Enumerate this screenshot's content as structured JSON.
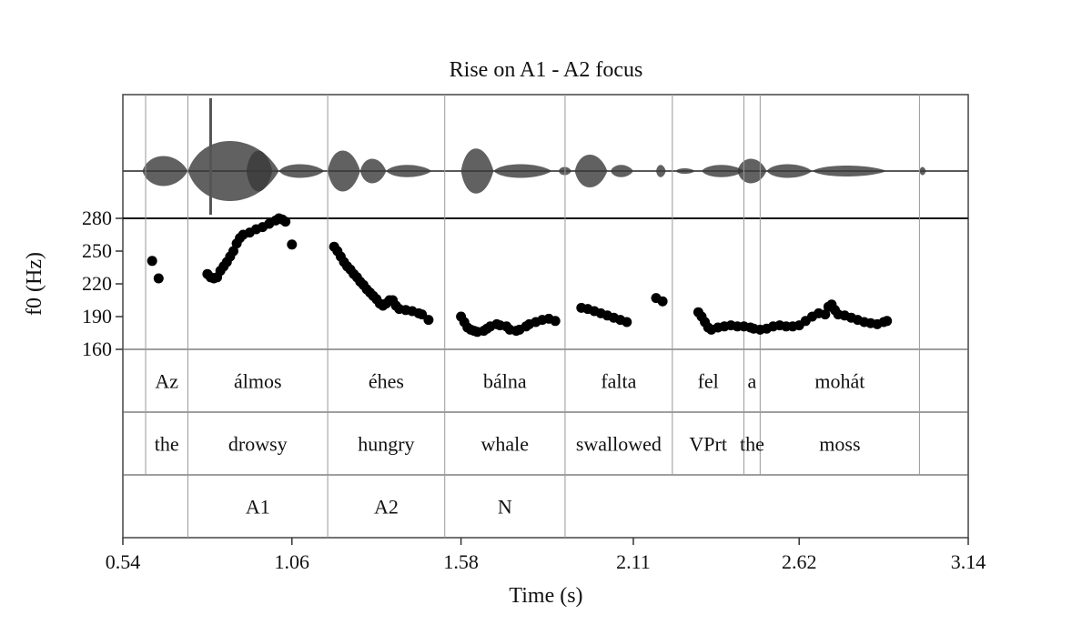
{
  "chart_data": {
    "type": "scatter",
    "title": "Rise on A1 - A2 focus",
    "xlabel": "Time (s)",
    "ylabel": "f0 (Hz)",
    "xlim": [
      0.54,
      3.14
    ],
    "ylim": [
      160,
      280
    ],
    "x_ticks": [
      "0.54",
      "1.06",
      "1.58",
      "2.11",
      "2.62",
      "3.14"
    ],
    "y_ticks": [
      "280",
      "250",
      "220",
      "190",
      "160"
    ],
    "grid": false,
    "waveform_panel": true,
    "segment_boundaries": [
      0.61,
      0.74,
      1.17,
      1.53,
      1.9,
      2.23,
      2.45,
      2.5,
      2.99
    ],
    "tiers": [
      {
        "name": "words",
        "intervals": [
          {
            "label": "Az",
            "start": 0.61,
            "end": 0.74
          },
          {
            "label": "álmos",
            "start": 0.74,
            "end": 1.17
          },
          {
            "label": "éhes",
            "start": 1.17,
            "end": 1.53
          },
          {
            "label": "bálna",
            "start": 1.53,
            "end": 1.9
          },
          {
            "label": "falta",
            "start": 1.9,
            "end": 2.23
          },
          {
            "label": "fel",
            "start": 2.23,
            "end": 2.45
          },
          {
            "label": "a",
            "start": 2.45,
            "end": 2.5
          },
          {
            "label": "mohát",
            "start": 2.5,
            "end": 2.99
          }
        ]
      },
      {
        "name": "gloss",
        "intervals": [
          {
            "label": "the",
            "start": 0.61,
            "end": 0.74
          },
          {
            "label": "drowsy",
            "start": 0.74,
            "end": 1.17
          },
          {
            "label": "hungry",
            "start": 1.17,
            "end": 1.53
          },
          {
            "label": "whale",
            "start": 1.53,
            "end": 1.9
          },
          {
            "label": "swallowed",
            "start": 1.9,
            "end": 2.23
          },
          {
            "label": "VPrt",
            "start": 2.23,
            "end": 2.45
          },
          {
            "label": "the",
            "start": 2.45,
            "end": 2.5
          },
          {
            "label": "moss",
            "start": 2.5,
            "end": 2.99
          }
        ]
      },
      {
        "name": "constituents",
        "intervals": [
          {
            "label": "A1",
            "start": 0.74,
            "end": 1.17
          },
          {
            "label": "A2",
            "start": 1.17,
            "end": 1.53
          },
          {
            "label": "N",
            "start": 1.53,
            "end": 1.9
          }
        ]
      }
    ],
    "series": [
      {
        "points": [
          [
            0.63,
            241
          ],
          [
            0.65,
            225
          ],
          [
            0.8,
            229
          ],
          [
            0.81,
            226
          ],
          [
            0.82,
            225
          ],
          [
            0.83,
            226
          ],
          [
            0.84,
            232
          ],
          [
            0.85,
            236
          ],
          [
            0.86,
            240
          ],
          [
            0.87,
            245
          ],
          [
            0.88,
            250
          ],
          [
            0.89,
            257
          ],
          [
            0.9,
            262
          ],
          [
            0.91,
            265
          ],
          [
            0.93,
            267
          ],
          [
            0.95,
            270
          ],
          [
            0.97,
            272
          ],
          [
            0.99,
            275
          ],
          [
            1.01,
            278
          ],
          [
            1.02,
            280
          ],
          [
            1.03,
            279
          ],
          [
            1.04,
            277
          ],
          [
            1.06,
            256
          ],
          [
            1.19,
            254
          ],
          [
            1.2,
            250
          ],
          [
            1.21,
            245
          ],
          [
            1.22,
            240
          ],
          [
            1.23,
            236
          ],
          [
            1.24,
            233
          ],
          [
            1.25,
            229
          ],
          [
            1.26,
            226
          ],
          [
            1.27,
            222
          ],
          [
            1.28,
            219
          ],
          [
            1.29,
            215
          ],
          [
            1.3,
            212
          ],
          [
            1.31,
            209
          ],
          [
            1.32,
            206
          ],
          [
            1.33,
            202
          ],
          [
            1.34,
            200
          ],
          [
            1.35,
            202
          ],
          [
            1.36,
            205
          ],
          [
            1.37,
            205
          ],
          [
            1.38,
            200
          ],
          [
            1.39,
            197
          ],
          [
            1.41,
            196
          ],
          [
            1.43,
            195
          ],
          [
            1.45,
            193
          ],
          [
            1.46,
            192
          ],
          [
            1.48,
            187
          ],
          [
            1.58,
            190
          ],
          [
            1.59,
            185
          ],
          [
            1.6,
            180
          ],
          [
            1.61,
            178
          ],
          [
            1.62,
            177
          ],
          [
            1.63,
            176
          ],
          [
            1.65,
            177
          ],
          [
            1.66,
            179
          ],
          [
            1.67,
            181
          ],
          [
            1.69,
            183
          ],
          [
            1.7,
            182
          ],
          [
            1.72,
            181
          ],
          [
            1.73,
            178
          ],
          [
            1.75,
            177
          ],
          [
            1.76,
            178
          ],
          [
            1.78,
            181
          ],
          [
            1.79,
            183
          ],
          [
            1.81,
            185
          ],
          [
            1.83,
            187
          ],
          [
            1.85,
            188
          ],
          [
            1.87,
            186
          ],
          [
            1.95,
            198
          ],
          [
            1.97,
            197
          ],
          [
            1.99,
            195
          ],
          [
            2.01,
            193
          ],
          [
            2.03,
            191
          ],
          [
            2.05,
            189
          ],
          [
            2.07,
            187
          ],
          [
            2.09,
            185
          ],
          [
            2.18,
            207
          ],
          [
            2.2,
            204
          ],
          [
            2.31,
            194
          ],
          [
            2.32,
            190
          ],
          [
            2.33,
            185
          ],
          [
            2.34,
            180
          ],
          [
            2.35,
            178
          ],
          [
            2.37,
            180
          ],
          [
            2.39,
            181
          ],
          [
            2.41,
            182
          ],
          [
            2.43,
            181
          ],
          [
            2.45,
            181
          ],
          [
            2.47,
            180
          ],
          [
            2.48,
            179
          ],
          [
            2.5,
            178
          ],
          [
            2.52,
            179
          ],
          [
            2.54,
            181
          ],
          [
            2.56,
            182
          ],
          [
            2.58,
            181
          ],
          [
            2.6,
            181
          ],
          [
            2.62,
            182
          ],
          [
            2.64,
            186
          ],
          [
            2.66,
            190
          ],
          [
            2.68,
            193
          ],
          [
            2.7,
            192
          ],
          [
            2.71,
            199
          ],
          [
            2.72,
            201
          ],
          [
            2.73,
            196
          ],
          [
            2.74,
            192
          ],
          [
            2.76,
            191
          ],
          [
            2.78,
            189
          ],
          [
            2.8,
            187
          ],
          [
            2.82,
            185
          ],
          [
            2.84,
            184
          ],
          [
            2.86,
            183
          ],
          [
            2.88,
            185
          ],
          [
            2.89,
            186
          ]
        ]
      }
    ]
  }
}
